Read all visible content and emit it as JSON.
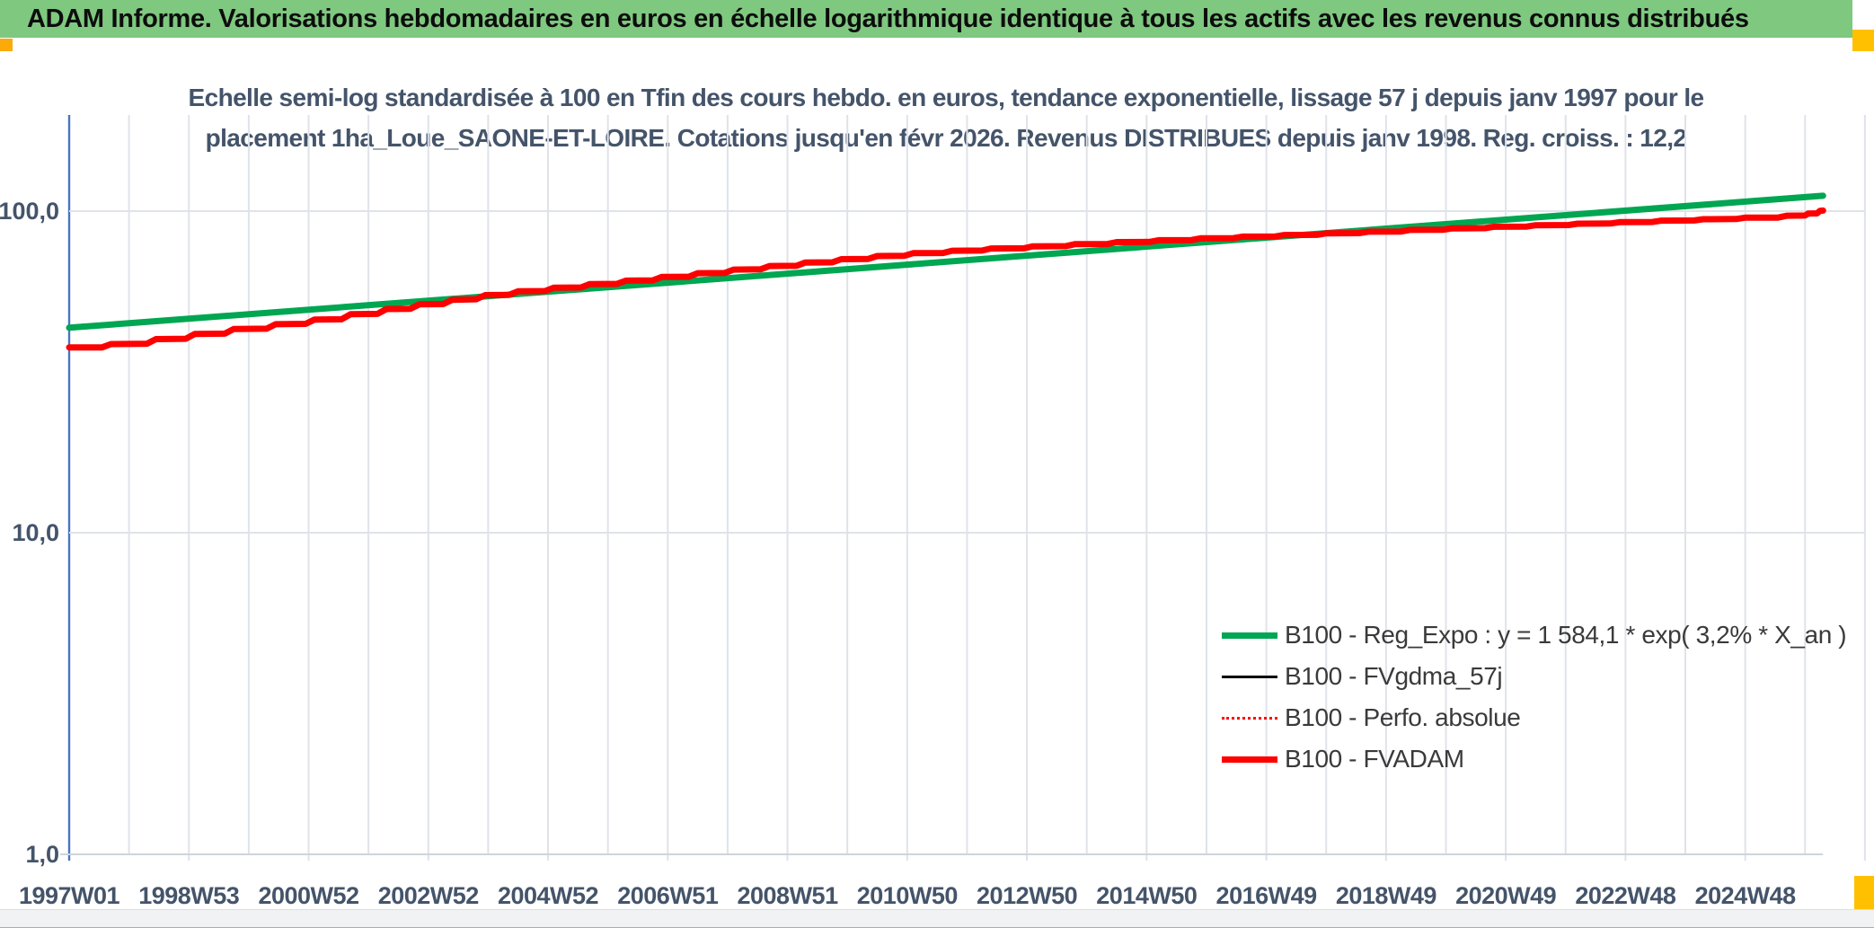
{
  "header": {
    "title": "ADAM Informe. Valorisations hebdomadaires en euros en échelle logarithmique identique à tous les actifs avec les revenus connus distribués"
  },
  "theme": {
    "header_bar_green": "#7EC87F",
    "accent_gold": "#FFC000",
    "accent_orange": "#FCA90A",
    "title_text": "#44546a",
    "axis_text": "#44546a",
    "gridline": "#dfe3e9",
    "y_axis_line": "#4a74c4",
    "x_axis_line": "#cfd4da",
    "series_green": "#00A651",
    "series_red": "#FF0000",
    "series_black": "#000000"
  },
  "chart_data": {
    "type": "line",
    "title_lines": [
      "Echelle semi-log standardisée à 100 en Tfin des cours hebdo. en euros, tendance exponentielle, lissage 57 j depuis janv 1997 pour le",
      "placement 1ha_Loue_SAONE-ET-LOIRE. Cotations jusqu'en févr 2026. Revenus DISTRIBUES depuis janv 1998. Reg. croiss. : 12,2"
    ],
    "title_full": "Echelle semi-log standardisée à 100 en Tfin des cours hebdo. en euros, tendance exponentielle, lissage 57 j depuis janv 1997 pour le placement 1ha_Loue_SAONE-ET-LOIRE. Cotations jusqu'en févr 2026. Revenus DISTRIBUES depuis janv 1998. Reg. croiss. : 12,2",
    "y_axis": {
      "scale": "log",
      "range": [
        1,
        200
      ],
      "ticks": [
        {
          "label": "100,0",
          "value": 100
        },
        {
          "label": "10,0",
          "value": 10
        },
        {
          "label": "1,0",
          "value": 1
        }
      ],
      "gridlines_at_values": [
        100,
        10
      ]
    },
    "x_axis": {
      "unit": "ISO week of weekly quotes, t = years since 1997W01",
      "t_range": [
        0,
        30
      ],
      "gridline_every_years": 1,
      "ticks": [
        {
          "label": "1997W01",
          "t": 0
        },
        {
          "label": "1998W53",
          "t": 2
        },
        {
          "label": "2000W52",
          "t": 4
        },
        {
          "label": "2002W52",
          "t": 6
        },
        {
          "label": "2004W52",
          "t": 8
        },
        {
          "label": "2006W51",
          "t": 10
        },
        {
          "label": "2008W51",
          "t": 12
        },
        {
          "label": "2010W50",
          "t": 14
        },
        {
          "label": "2012W50",
          "t": 16
        },
        {
          "label": "2014W50",
          "t": 18
        },
        {
          "label": "2016W49",
          "t": 20
        },
        {
          "label": "2018W49",
          "t": 22
        },
        {
          "label": "2020W49",
          "t": 24
        },
        {
          "label": "2022W48",
          "t": 26
        },
        {
          "label": "2024W48",
          "t": 28
        }
      ]
    },
    "legend_position": "middle-right",
    "series": [
      {
        "name": "B100 - Reg_Expo : y = 1 584,1 * exp( 3,2% *  X_an )",
        "color": "#00A651",
        "style": "solid",
        "width": 7,
        "points": [
          [
            0,
            43.4
          ],
          [
            29.3,
            111.6
          ]
        ]
      },
      {
        "name": "B100 - FVgdma_57j",
        "color": "#000000",
        "style": "solid",
        "width": 3,
        "points": [],
        "layout_note": "coincides with FVADAM, hidden beneath it"
      },
      {
        "name": "B100 - Perfo. absolue",
        "color": "#FF0000",
        "style": "dotted",
        "width": 3,
        "points": [],
        "layout_note": "coincides with FVADAM, hidden beneath it"
      },
      {
        "name": "B100 - FVADAM",
        "color": "#FF0000",
        "style": "solid",
        "width": 7,
        "points": [
          [
            0,
            37.7
          ],
          [
            0.55,
            37.7
          ],
          [
            0.7,
            38.6
          ],
          [
            1.3,
            38.7
          ],
          [
            1.45,
            40.0
          ],
          [
            1.95,
            40.1
          ],
          [
            2.1,
            41.5
          ],
          [
            2.6,
            41.6
          ],
          [
            2.75,
            43.0
          ],
          [
            3.3,
            43.1
          ],
          [
            3.45,
            44.5
          ],
          [
            3.95,
            44.6
          ],
          [
            4.1,
            46.0
          ],
          [
            4.55,
            46.1
          ],
          [
            4.7,
            47.8
          ],
          [
            5.15,
            47.9
          ],
          [
            5.3,
            49.6
          ],
          [
            5.7,
            49.7
          ],
          [
            5.85,
            51.3
          ],
          [
            6.25,
            51.4
          ],
          [
            6.4,
            53.0
          ],
          [
            6.8,
            53.2
          ],
          [
            6.95,
            54.8
          ],
          [
            7.35,
            54.9
          ],
          [
            7.5,
            56.3
          ],
          [
            7.95,
            56.4
          ],
          [
            8.1,
            57.8
          ],
          [
            8.55,
            57.9
          ],
          [
            8.7,
            59.3
          ],
          [
            9.15,
            59.4
          ],
          [
            9.3,
            60.8
          ],
          [
            9.75,
            60.9
          ],
          [
            9.9,
            62.4
          ],
          [
            10.35,
            62.5
          ],
          [
            10.5,
            64.1
          ],
          [
            10.95,
            64.2
          ],
          [
            11.1,
            65.8
          ],
          [
            11.55,
            65.9
          ],
          [
            11.7,
            67.5
          ],
          [
            12.15,
            67.6
          ],
          [
            12.3,
            69.2
          ],
          [
            12.75,
            69.3
          ],
          [
            12.9,
            70.9
          ],
          [
            13.35,
            71.0
          ],
          [
            13.5,
            72.5
          ],
          [
            13.95,
            72.6
          ],
          [
            14.1,
            74.0
          ],
          [
            14.6,
            74.1
          ],
          [
            14.75,
            75.3
          ],
          [
            15.25,
            75.4
          ],
          [
            15.4,
            76.5
          ],
          [
            15.95,
            76.6
          ],
          [
            16.1,
            77.7
          ],
          [
            16.65,
            77.8
          ],
          [
            16.8,
            78.9
          ],
          [
            17.35,
            79.0
          ],
          [
            17.5,
            80.1
          ],
          [
            18.05,
            80.2
          ],
          [
            18.2,
            81.2
          ],
          [
            18.75,
            81.3
          ],
          [
            18.9,
            82.3
          ],
          [
            19.45,
            82.4
          ],
          [
            19.6,
            83.3
          ],
          [
            20.15,
            83.4
          ],
          [
            20.3,
            84.3
          ],
          [
            20.85,
            84.4
          ],
          [
            21.0,
            85.3
          ],
          [
            21.55,
            85.4
          ],
          [
            21.7,
            86.3
          ],
          [
            22.25,
            86.4
          ],
          [
            22.4,
            87.4
          ],
          [
            22.95,
            87.5
          ],
          [
            23.1,
            88.4
          ],
          [
            23.65,
            88.5
          ],
          [
            23.8,
            89.4
          ],
          [
            24.35,
            89.5
          ],
          [
            24.5,
            90.4
          ],
          [
            25.05,
            90.5
          ],
          [
            25.2,
            91.4
          ],
          [
            25.75,
            91.5
          ],
          [
            25.9,
            92.4
          ],
          [
            26.45,
            92.5
          ],
          [
            26.6,
            93.4
          ],
          [
            27.15,
            93.5
          ],
          [
            27.3,
            94.4
          ],
          [
            27.85,
            94.5
          ],
          [
            28.0,
            95.4
          ],
          [
            28.55,
            95.5
          ],
          [
            28.7,
            96.8
          ],
          [
            29.0,
            96.9
          ],
          [
            29.05,
            98.3
          ],
          [
            29.2,
            98.4
          ],
          [
            29.25,
            100.2
          ],
          [
            29.3,
            100.4
          ]
        ]
      }
    ]
  }
}
